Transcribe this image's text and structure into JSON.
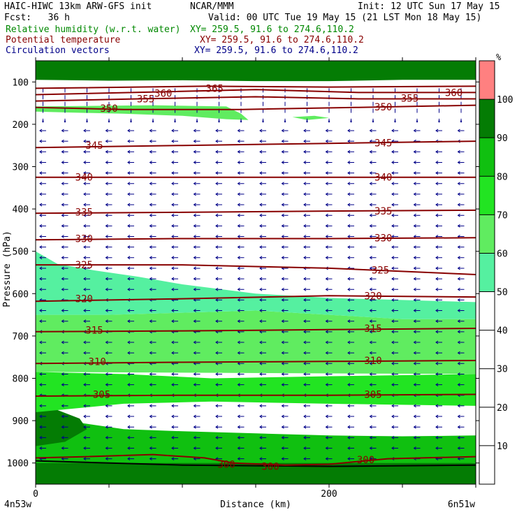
{
  "header": {
    "title_left": "HAIC-HIWC 13km ARW-GFS init",
    "center": "NCAR/MMM",
    "init": "Init: 12 UTC Sun 17 May 15",
    "fcst": "Fcst:   36 h",
    "valid": "Valid: 00 UTC Tue 19 May 15 (21 LST Mon 18 May 15)",
    "rh_label": "Relative humidity (w.r.t. water)",
    "rh_xy": "XY= 259.5, 91.6 to 274.6,110.2",
    "theta_label": "Potential temperature",
    "theta_xy": "XY= 259.5, 91.6 to 274.6,110.2",
    "vec_label": "Circulation vectors",
    "vec_xy": "XY= 259.5, 91.6 to 274.6,110.2",
    "rh_color": "#008800",
    "theta_color": "#880000",
    "vec_color": "#000088"
  },
  "chart_data": {
    "type": "cross-section",
    "xlabel": "Distance (km)",
    "ylabel": "Pressure (hPa)",
    "xlim": [
      0,
      300
    ],
    "ylim": [
      1050,
      50
    ],
    "x_ticks": [
      0,
      200
    ],
    "y_ticks": [
      100,
      200,
      300,
      400,
      500,
      600,
      700,
      800,
      900,
      1000
    ],
    "endpoint_left": "4n53w",
    "endpoint_right": "6n51w",
    "colorbar": {
      "unit": "%",
      "levels": [
        10,
        20,
        30,
        40,
        50,
        60,
        70,
        80,
        90,
        100
      ],
      "fills": [
        {
          "from": 0,
          "to": 50,
          "color": "#ffffff"
        },
        {
          "from": 50,
          "to": 60,
          "color": "#55f0a0"
        },
        {
          "from": 60,
          "to": 70,
          "color": "#60ec60"
        },
        {
          "from": 70,
          "to": 80,
          "color": "#22e422"
        },
        {
          "from": 80,
          "to": 90,
          "color": "#10c010"
        },
        {
          "from": 90,
          "to": 100,
          "color": "#047c04"
        },
        {
          "from": 100,
          "to": 110,
          "color": "#ff8080"
        }
      ]
    },
    "theta_contours": [
      {
        "label": "300",
        "pts": [
          [
            0,
            988
          ],
          [
            35,
            985
          ],
          [
            80,
            980
          ],
          [
            115,
            988
          ],
          [
            135,
            1000
          ],
          [
            170,
            1005
          ],
          [
            200,
            1003
          ],
          [
            240,
            990
          ],
          [
            300,
            985
          ]
        ],
        "labels": [
          [
            130,
            1003
          ],
          [
            160,
            1008
          ],
          [
            225,
            992
          ]
        ]
      },
      {
        "label": "305",
        "pts": [
          [
            0,
            842
          ],
          [
            100,
            840
          ],
          [
            200,
            840
          ],
          [
            300,
            838
          ]
        ],
        "labels": [
          [
            45,
            838
          ],
          [
            230,
            838
          ]
        ]
      },
      {
        "label": "310",
        "pts": [
          [
            0,
            765
          ],
          [
            100,
            762
          ],
          [
            200,
            760
          ],
          [
            300,
            758
          ]
        ],
        "labels": [
          [
            42,
            760
          ],
          [
            230,
            758
          ]
        ]
      },
      {
        "label": "315",
        "pts": [
          [
            0,
            690
          ],
          [
            100,
            688
          ],
          [
            200,
            685
          ],
          [
            300,
            682
          ]
        ],
        "labels": [
          [
            40,
            686
          ],
          [
            230,
            682
          ]
        ]
      },
      {
        "label": "320",
        "pts": [
          [
            0,
            618
          ],
          [
            100,
            612
          ],
          [
            200,
            605
          ],
          [
            300,
            608
          ]
        ],
        "labels": [
          [
            33,
            612
          ],
          [
            230,
            605
          ]
        ]
      },
      {
        "label": "325",
        "pts": [
          [
            0,
            532
          ],
          [
            100,
            532
          ],
          [
            200,
            540
          ],
          [
            300,
            555
          ]
        ],
        "labels": [
          [
            33,
            532
          ],
          [
            235,
            544
          ]
        ]
      },
      {
        "label": "330",
        "pts": [
          [
            0,
            473
          ],
          [
            100,
            470
          ],
          [
            200,
            470
          ],
          [
            300,
            468
          ]
        ],
        "labels": [
          [
            33,
            470
          ],
          [
            237,
            468
          ]
        ]
      },
      {
        "label": "335",
        "pts": [
          [
            0,
            410
          ],
          [
            100,
            408
          ],
          [
            200,
            405
          ],
          [
            300,
            403
          ]
        ],
        "labels": [
          [
            33,
            407
          ],
          [
            237,
            405
          ]
        ]
      },
      {
        "label": "340",
        "pts": [
          [
            0,
            325
          ],
          [
            100,
            325
          ],
          [
            200,
            325
          ],
          [
            300,
            325
          ]
        ],
        "labels": [
          [
            33,
            325
          ],
          [
            237,
            325
          ]
        ]
      },
      {
        "label": "345",
        "pts": [
          [
            0,
            255
          ],
          [
            100,
            250
          ],
          [
            200,
            245
          ],
          [
            300,
            240
          ]
        ],
        "labels": [
          [
            40,
            250
          ],
          [
            237,
            244
          ]
        ]
      },
      {
        "label": "350",
        "pts": [
          [
            0,
            160
          ],
          [
            60,
            165
          ],
          [
            140,
            165
          ],
          [
            220,
            160
          ],
          [
            300,
            155
          ]
        ],
        "labels": [
          [
            50,
            162
          ],
          [
            237,
            159
          ]
        ]
      },
      {
        "label": "355",
        "pts": [
          [
            0,
            145
          ],
          [
            70,
            140
          ],
          [
            150,
            135
          ],
          [
            220,
            140
          ],
          [
            300,
            140
          ]
        ],
        "labels": [
          [
            75,
            140
          ],
          [
            255,
            138
          ]
        ]
      },
      {
        "label": "360",
        "pts": [
          [
            0,
            130
          ],
          [
            90,
            123
          ],
          [
            150,
            118
          ],
          [
            220,
            125
          ],
          [
            300,
            125
          ]
        ],
        "labels": [
          [
            87,
            127
          ],
          [
            285,
            125
          ]
        ]
      },
      {
        "label": "365",
        "pts": [
          [
            0,
            115
          ],
          [
            115,
            110
          ],
          [
            200,
            112
          ],
          [
            300,
            110
          ]
        ],
        "labels": [
          [
            122,
            115
          ]
        ]
      }
    ],
    "rh_regions": [
      {
        "level": 90,
        "poly": [
          [
            0,
            1050
          ],
          [
            300,
            1050
          ],
          [
            300,
            1000
          ],
          [
            250,
            995
          ],
          [
            200,
            990
          ],
          [
            150,
            990
          ],
          [
            100,
            990
          ],
          [
            50,
            990
          ],
          [
            0,
            990
          ]
        ]
      },
      {
        "level": 90,
        "poly": [
          [
            0,
            50
          ],
          [
            300,
            50
          ],
          [
            300,
            95
          ],
          [
            250,
            95
          ],
          [
            200,
            98
          ],
          [
            150,
            98
          ],
          [
            100,
            96
          ],
          [
            50,
            97
          ],
          [
            0,
            95
          ]
        ]
      },
      {
        "level": 80,
        "poly": [
          [
            0,
            1000
          ],
          [
            300,
            1000
          ],
          [
            300,
            935
          ],
          [
            250,
            937
          ],
          [
            200,
            935
          ],
          [
            150,
            930
          ],
          [
            100,
            925
          ],
          [
            60,
            920
          ],
          [
            30,
            905
          ],
          [
            0,
            880
          ]
        ]
      },
      {
        "level": 90,
        "poly": [
          [
            0,
            960
          ],
          [
            20,
            950
          ],
          [
            35,
            920
          ],
          [
            30,
            895
          ],
          [
            15,
            875
          ],
          [
            0,
            865
          ]
        ]
      },
      {
        "level": 70,
        "poly": [
          [
            0,
            880
          ],
          [
            60,
            860
          ],
          [
            120,
            855
          ],
          [
            200,
            860
          ],
          [
            300,
            865
          ],
          [
            300,
            790
          ],
          [
            200,
            795
          ],
          [
            120,
            800
          ],
          [
            60,
            790
          ],
          [
            0,
            785
          ]
        ]
      },
      {
        "level": 60,
        "poly": [
          [
            0,
            785
          ],
          [
            300,
            790
          ],
          [
            300,
            660
          ],
          [
            250,
            660
          ],
          [
            200,
            650
          ],
          [
            150,
            640
          ],
          [
            100,
            645
          ],
          [
            50,
            650
          ],
          [
            0,
            650
          ]
        ]
      },
      {
        "level": 50,
        "poly": [
          [
            0,
            650
          ],
          [
            50,
            650
          ],
          [
            100,
            645
          ],
          [
            150,
            640
          ],
          [
            200,
            650
          ],
          [
            250,
            660
          ],
          [
            300,
            660
          ],
          [
            300,
            620
          ],
          [
            250,
            615
          ],
          [
            200,
            610
          ],
          [
            150,
            600
          ],
          [
            100,
            578
          ],
          [
            70,
            560
          ],
          [
            40,
            545
          ],
          [
            15,
            530
          ],
          [
            0,
            500
          ]
        ]
      },
      {
        "level": 60,
        "poly": [
          [
            0,
            158
          ],
          [
            80,
            155
          ],
          [
            130,
            158
          ],
          [
            140,
            175
          ],
          [
            145,
            190
          ],
          [
            130,
            188
          ],
          [
            100,
            180
          ],
          [
            60,
            175
          ],
          [
            20,
            172
          ],
          [
            0,
            170
          ]
        ]
      },
      {
        "level": 60,
        "poly": [
          [
            175,
            183
          ],
          [
            190,
            180
          ],
          [
            200,
            185
          ],
          [
            185,
            190
          ]
        ]
      }
    ],
    "vectors": {
      "columns_km": [
        5,
        20,
        35,
        50,
        65,
        80,
        95,
        110,
        125,
        140,
        155,
        170,
        185,
        200,
        215,
        230,
        245,
        260,
        275,
        290
      ],
      "rows_hpa": [
        190,
        215,
        240,
        265,
        290,
        315,
        340,
        365,
        390,
        415,
        440,
        465,
        490,
        515,
        540,
        565,
        590,
        615,
        640,
        665,
        690,
        715,
        740,
        765,
        790,
        815,
        840,
        865,
        890,
        915,
        940,
        965,
        990
      ],
      "u_default": -1,
      "low_u_above_hpa": 200
    }
  }
}
